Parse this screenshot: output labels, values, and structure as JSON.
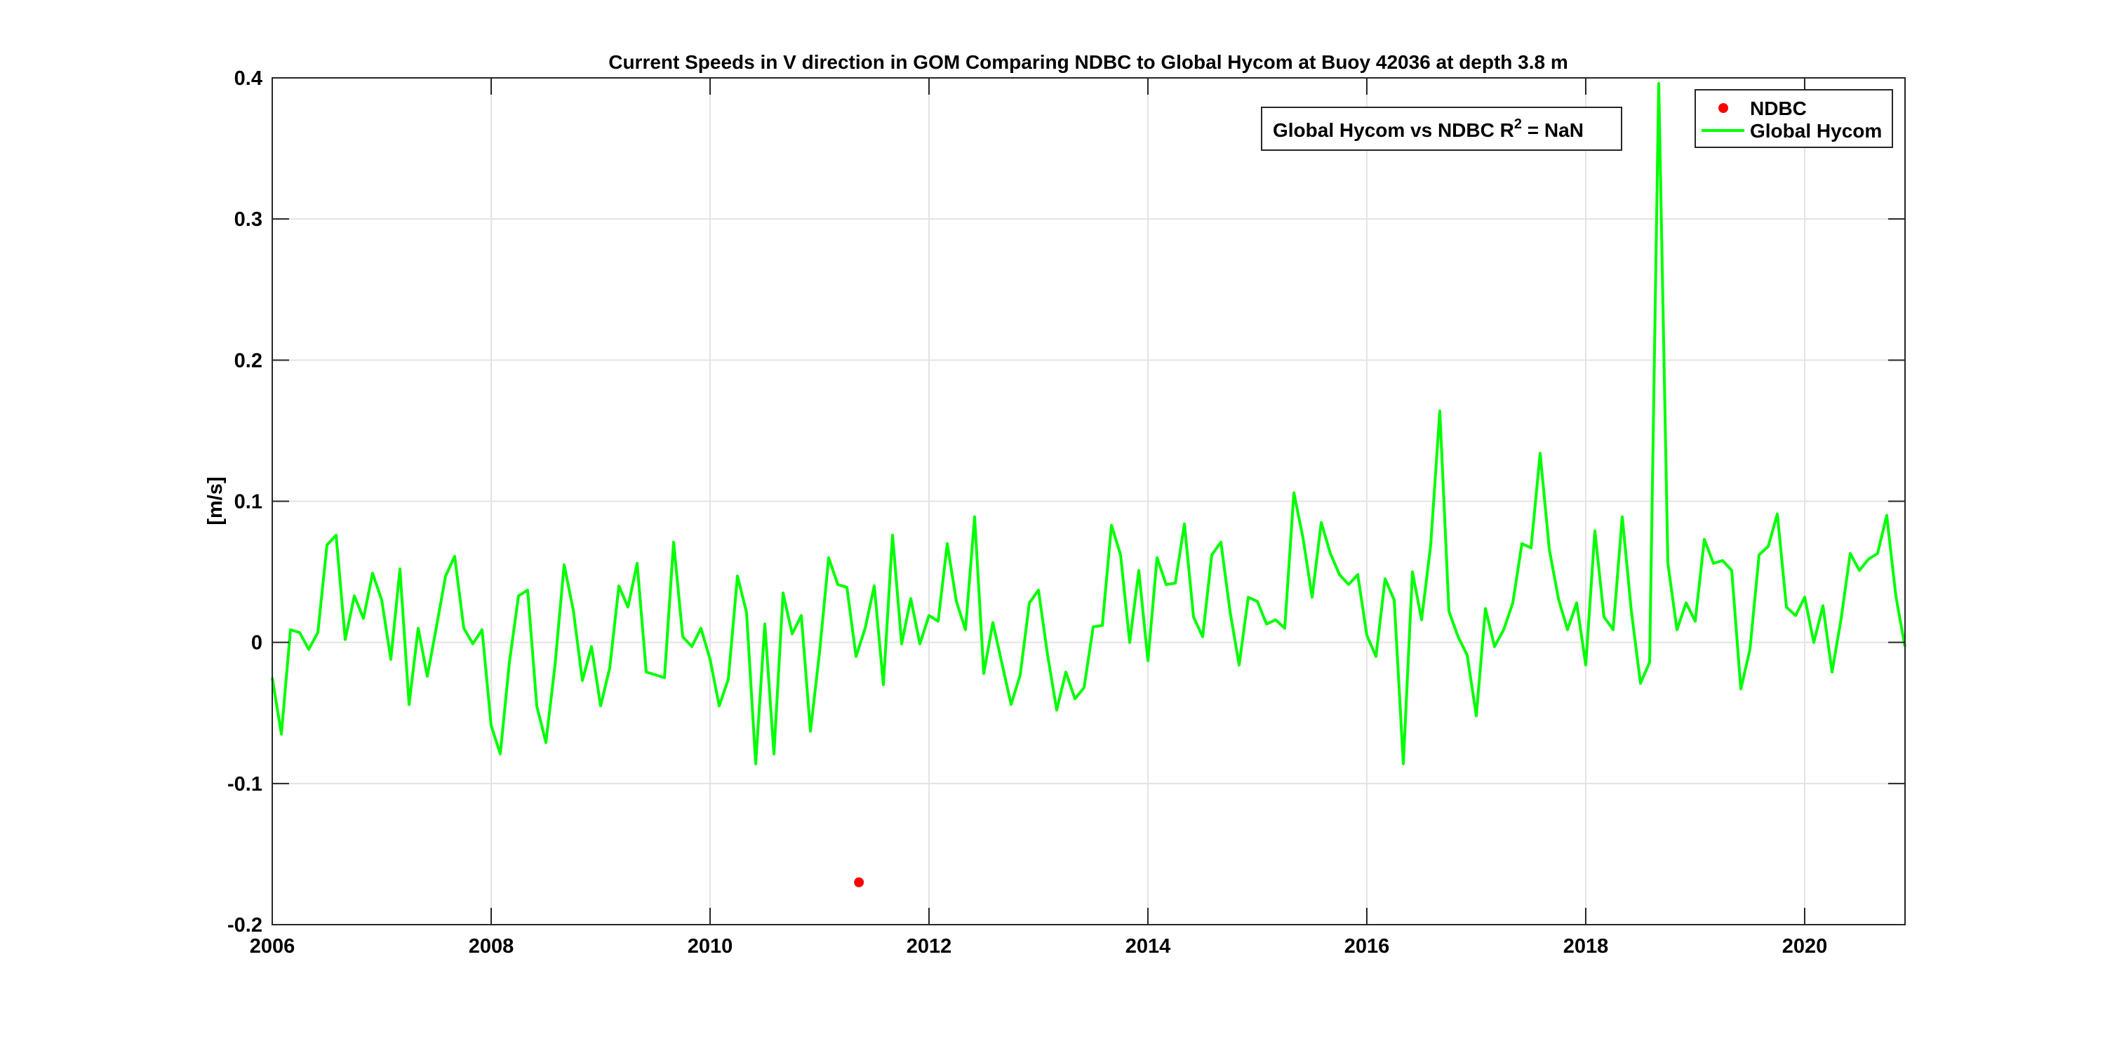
{
  "chart_data": {
    "type": "line",
    "title": "Current Speeds in V direction in GOM Comparing NDBC to Global Hycom at Buoy  42036  at depth  3.8 m",
    "xlabel": "",
    "ylabel": "[m/s]",
    "xlim": [
      2006,
      2020.917
    ],
    "ylim": [
      -0.2,
      0.4
    ],
    "xticks": [
      2006,
      2008,
      2010,
      2012,
      2014,
      2016,
      2018,
      2020
    ],
    "xtick_labels": [
      "2006",
      "2008",
      "2010",
      "2012",
      "2014",
      "2016",
      "2018",
      "2020"
    ],
    "yticks": [
      -0.2,
      -0.1,
      0,
      0.1,
      0.2,
      0.3,
      0.4
    ],
    "ytick_labels": [
      "-0.2",
      "-0.1",
      "0",
      "0.1",
      "0.2",
      "0.3",
      "0.4"
    ],
    "grid": true,
    "legend_position": "top-right",
    "annotation": {
      "prefix": "Global Hycom vs NDBC R",
      "sup": "2",
      "suffix": " = NaN"
    },
    "series": [
      {
        "name": "NDBC",
        "kind": "scatter",
        "color": "#ff0000",
        "points": [
          {
            "x": 2011.36,
            "y": -0.17
          }
        ]
      },
      {
        "name": "Global Hycom",
        "kind": "line",
        "color": "#00ff00",
        "x_start": 2006.0,
        "x_step_months": 1,
        "values": [
          -0.025,
          -0.065,
          0.009,
          0.007,
          -0.005,
          0.007,
          0.069,
          0.076,
          0.002,
          0.033,
          0.017,
          0.049,
          0.03,
          -0.012,
          0.052,
          -0.044,
          0.01,
          -0.024,
          0.011,
          0.047,
          0.061,
          0.01,
          -0.001,
          0.009,
          -0.059,
          -0.079,
          -0.014,
          0.033,
          0.037,
          -0.045,
          -0.071,
          -0.016,
          0.055,
          0.023,
          -0.027,
          -0.003,
          -0.045,
          -0.018,
          0.04,
          0.025,
          0.056,
          -0.021,
          -0.023,
          -0.025,
          0.071,
          0.004,
          -0.003,
          0.01,
          -0.012,
          -0.045,
          -0.026,
          0.047,
          0.021,
          -0.086,
          0.013,
          -0.079,
          0.035,
          0.006,
          0.019,
          -0.063,
          -0.007,
          0.06,
          0.041,
          0.039,
          -0.01,
          0.01,
          0.04,
          -0.03,
          0.076,
          -0.001,
          0.031,
          -0.001,
          0.019,
          0.015,
          0.07,
          0.029,
          0.009,
          0.089,
          -0.022,
          0.014,
          -0.015,
          -0.044,
          -0.023,
          0.028,
          0.037,
          -0.009,
          -0.048,
          -0.021,
          -0.04,
          -0.032,
          0.011,
          0.012,
          0.083,
          0.062,
          0.0,
          0.051,
          -0.013,
          0.06,
          0.041,
          0.042,
          0.084,
          0.018,
          0.004,
          0.062,
          0.071,
          0.022,
          -0.016,
          0.032,
          0.029,
          0.013,
          0.016,
          0.01,
          0.106,
          0.074,
          0.032,
          0.085,
          0.063,
          0.048,
          0.041,
          0.048,
          0.005,
          -0.01,
          0.045,
          0.03,
          -0.086,
          0.05,
          0.016,
          0.069,
          0.164,
          0.022,
          0.004,
          -0.009,
          -0.052,
          0.024,
          -0.003,
          0.009,
          0.028,
          0.07,
          0.067,
          0.134,
          0.066,
          0.031,
          0.009,
          0.028,
          -0.016,
          0.079,
          0.018,
          0.009,
          0.089,
          0.022,
          -0.029,
          -0.014,
          0.396,
          0.056,
          0.009,
          0.028,
          0.015,
          0.073,
          0.056,
          0.058,
          0.051,
          -0.033,
          -0.005,
          0.062,
          0.068,
          0.091,
          0.025,
          0.019,
          0.032,
          0.0,
          0.026,
          -0.021,
          0.017,
          0.063,
          0.051,
          0.059,
          0.063,
          0.09,
          0.033,
          -0.003
        ]
      }
    ]
  }
}
